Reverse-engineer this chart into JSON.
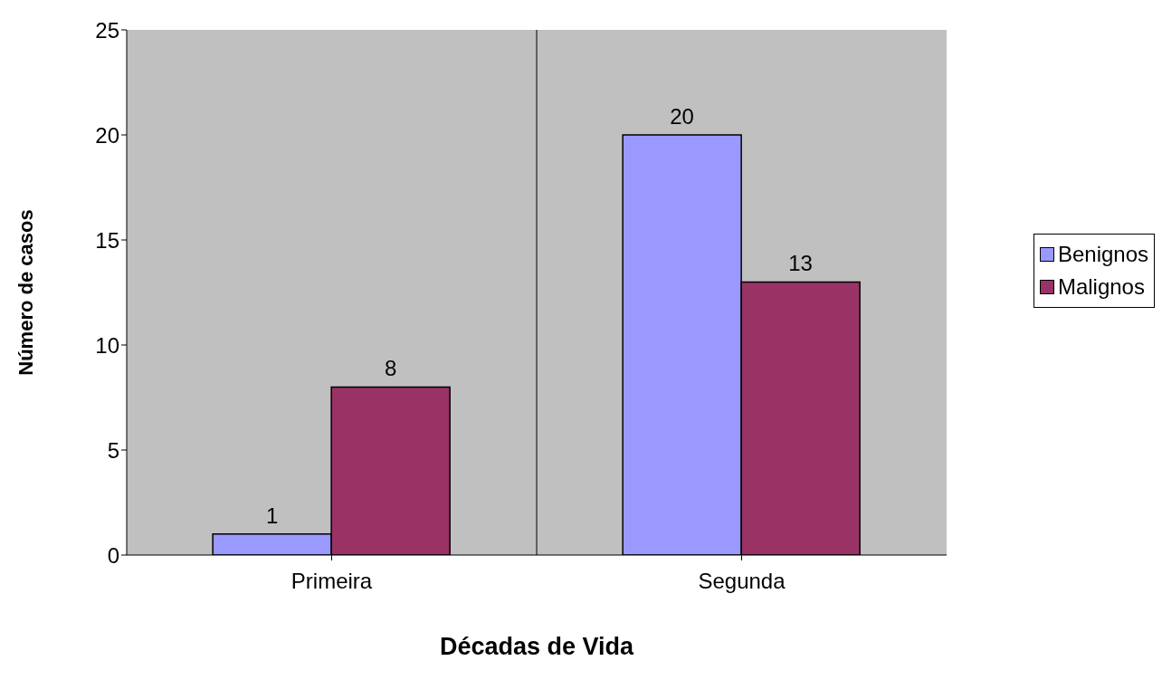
{
  "chart_data": {
    "type": "bar",
    "xlabel": "Décadas de Vida",
    "ylabel": "Número de casos",
    "categories": [
      "Primeira",
      "Segunda"
    ],
    "series": [
      {
        "name": "Benignos",
        "color": "#9999ff",
        "values": [
          1,
          20
        ]
      },
      {
        "name": "Malignos",
        "color": "#993366",
        "values": [
          8,
          13
        ]
      }
    ],
    "ylim": [
      0,
      25
    ],
    "yticks": [
      0,
      5,
      10,
      15,
      20,
      25
    ],
    "grid": "x",
    "legend": "right",
    "data_labels": true
  }
}
